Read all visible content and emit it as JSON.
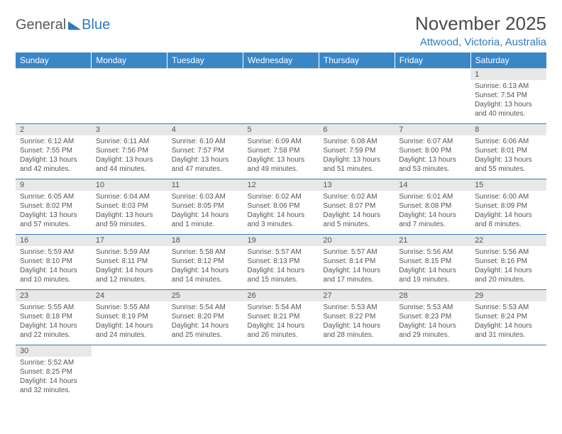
{
  "logo": {
    "part1": "General",
    "part2": "Blue"
  },
  "title": "November 2025",
  "location": "Attwood, Victoria, Australia",
  "dayHeaders": [
    "Sunday",
    "Monday",
    "Tuesday",
    "Wednesday",
    "Thursday",
    "Friday",
    "Saturday"
  ],
  "colors": {
    "headerBg": "#3a87c7",
    "accent": "#2f7ac0",
    "dayNumBg": "#e8e8e8",
    "text": "#555555",
    "white": "#ffffff"
  },
  "weeks": [
    [
      null,
      null,
      null,
      null,
      null,
      null,
      {
        "n": "1",
        "sunrise": "Sunrise: 6:13 AM",
        "sunset": "Sunset: 7:54 PM",
        "daylight": "Daylight: 13 hours and 40 minutes."
      }
    ],
    [
      {
        "n": "2",
        "sunrise": "Sunrise: 6:12 AM",
        "sunset": "Sunset: 7:55 PM",
        "daylight": "Daylight: 13 hours and 42 minutes."
      },
      {
        "n": "3",
        "sunrise": "Sunrise: 6:11 AM",
        "sunset": "Sunset: 7:56 PM",
        "daylight": "Daylight: 13 hours and 44 minutes."
      },
      {
        "n": "4",
        "sunrise": "Sunrise: 6:10 AM",
        "sunset": "Sunset: 7:57 PM",
        "daylight": "Daylight: 13 hours and 47 minutes."
      },
      {
        "n": "5",
        "sunrise": "Sunrise: 6:09 AM",
        "sunset": "Sunset: 7:58 PM",
        "daylight": "Daylight: 13 hours and 49 minutes."
      },
      {
        "n": "6",
        "sunrise": "Sunrise: 6:08 AM",
        "sunset": "Sunset: 7:59 PM",
        "daylight": "Daylight: 13 hours and 51 minutes."
      },
      {
        "n": "7",
        "sunrise": "Sunrise: 6:07 AM",
        "sunset": "Sunset: 8:00 PM",
        "daylight": "Daylight: 13 hours and 53 minutes."
      },
      {
        "n": "8",
        "sunrise": "Sunrise: 6:06 AM",
        "sunset": "Sunset: 8:01 PM",
        "daylight": "Daylight: 13 hours and 55 minutes."
      }
    ],
    [
      {
        "n": "9",
        "sunrise": "Sunrise: 6:05 AM",
        "sunset": "Sunset: 8:02 PM",
        "daylight": "Daylight: 13 hours and 57 minutes."
      },
      {
        "n": "10",
        "sunrise": "Sunrise: 6:04 AM",
        "sunset": "Sunset: 8:03 PM",
        "daylight": "Daylight: 13 hours and 59 minutes."
      },
      {
        "n": "11",
        "sunrise": "Sunrise: 6:03 AM",
        "sunset": "Sunset: 8:05 PM",
        "daylight": "Daylight: 14 hours and 1 minute."
      },
      {
        "n": "12",
        "sunrise": "Sunrise: 6:02 AM",
        "sunset": "Sunset: 8:06 PM",
        "daylight": "Daylight: 14 hours and 3 minutes."
      },
      {
        "n": "13",
        "sunrise": "Sunrise: 6:02 AM",
        "sunset": "Sunset: 8:07 PM",
        "daylight": "Daylight: 14 hours and 5 minutes."
      },
      {
        "n": "14",
        "sunrise": "Sunrise: 6:01 AM",
        "sunset": "Sunset: 8:08 PM",
        "daylight": "Daylight: 14 hours and 7 minutes."
      },
      {
        "n": "15",
        "sunrise": "Sunrise: 6:00 AM",
        "sunset": "Sunset: 8:09 PM",
        "daylight": "Daylight: 14 hours and 8 minutes."
      }
    ],
    [
      {
        "n": "16",
        "sunrise": "Sunrise: 5:59 AM",
        "sunset": "Sunset: 8:10 PM",
        "daylight": "Daylight: 14 hours and 10 minutes."
      },
      {
        "n": "17",
        "sunrise": "Sunrise: 5:59 AM",
        "sunset": "Sunset: 8:11 PM",
        "daylight": "Daylight: 14 hours and 12 minutes."
      },
      {
        "n": "18",
        "sunrise": "Sunrise: 5:58 AM",
        "sunset": "Sunset: 8:12 PM",
        "daylight": "Daylight: 14 hours and 14 minutes."
      },
      {
        "n": "19",
        "sunrise": "Sunrise: 5:57 AM",
        "sunset": "Sunset: 8:13 PM",
        "daylight": "Daylight: 14 hours and 15 minutes."
      },
      {
        "n": "20",
        "sunrise": "Sunrise: 5:57 AM",
        "sunset": "Sunset: 8:14 PM",
        "daylight": "Daylight: 14 hours and 17 minutes."
      },
      {
        "n": "21",
        "sunrise": "Sunrise: 5:56 AM",
        "sunset": "Sunset: 8:15 PM",
        "daylight": "Daylight: 14 hours and 19 minutes."
      },
      {
        "n": "22",
        "sunrise": "Sunrise: 5:56 AM",
        "sunset": "Sunset: 8:16 PM",
        "daylight": "Daylight: 14 hours and 20 minutes."
      }
    ],
    [
      {
        "n": "23",
        "sunrise": "Sunrise: 5:55 AM",
        "sunset": "Sunset: 8:18 PM",
        "daylight": "Daylight: 14 hours and 22 minutes."
      },
      {
        "n": "24",
        "sunrise": "Sunrise: 5:55 AM",
        "sunset": "Sunset: 8:19 PM",
        "daylight": "Daylight: 14 hours and 24 minutes."
      },
      {
        "n": "25",
        "sunrise": "Sunrise: 5:54 AM",
        "sunset": "Sunset: 8:20 PM",
        "daylight": "Daylight: 14 hours and 25 minutes."
      },
      {
        "n": "26",
        "sunrise": "Sunrise: 5:54 AM",
        "sunset": "Sunset: 8:21 PM",
        "daylight": "Daylight: 14 hours and 26 minutes."
      },
      {
        "n": "27",
        "sunrise": "Sunrise: 5:53 AM",
        "sunset": "Sunset: 8:22 PM",
        "daylight": "Daylight: 14 hours and 28 minutes."
      },
      {
        "n": "28",
        "sunrise": "Sunrise: 5:53 AM",
        "sunset": "Sunset: 8:23 PM",
        "daylight": "Daylight: 14 hours and 29 minutes."
      },
      {
        "n": "29",
        "sunrise": "Sunrise: 5:53 AM",
        "sunset": "Sunset: 8:24 PM",
        "daylight": "Daylight: 14 hours and 31 minutes."
      }
    ],
    [
      {
        "n": "30",
        "sunrise": "Sunrise: 5:52 AM",
        "sunset": "Sunset: 8:25 PM",
        "daylight": "Daylight: 14 hours and 32 minutes."
      },
      null,
      null,
      null,
      null,
      null,
      null
    ]
  ]
}
